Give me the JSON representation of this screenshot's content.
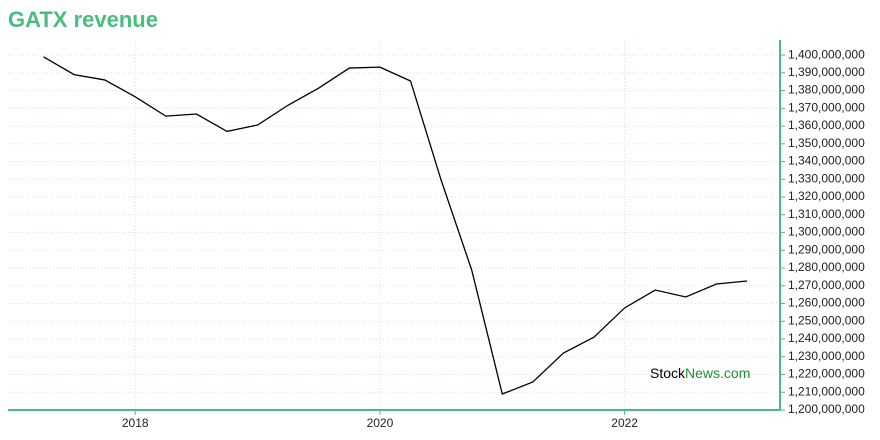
{
  "chart_data": {
    "type": "line",
    "title": "GATX revenue",
    "watermark": {
      "first": "Stock",
      "second": "News.com"
    },
    "x": [
      2017.25,
      2017.5,
      2017.75,
      2018,
      2018.25,
      2018.5,
      2018.75,
      2019,
      2019.25,
      2019.5,
      2019.75,
      2020,
      2020.25,
      2020.5,
      2020.75,
      2021,
      2021.25,
      2021.5,
      2021.75,
      2022,
      2022.25,
      2022.5,
      2022.75,
      2023
    ],
    "series": [
      {
        "name": "GATX revenue",
        "color": "#000000",
        "values": [
          1399000000,
          1389000000,
          1386000000,
          1376500000,
          1365600000,
          1366800000,
          1357000000,
          1360600000,
          1371800000,
          1381400000,
          1392700000,
          1393200000,
          1385400000,
          1329600000,
          1278900000,
          1209000000,
          1215800000,
          1232100000,
          1241100000,
          1257500000,
          1267600000,
          1263700000,
          1271000000,
          1272700000
        ]
      }
    ],
    "xlim": [
      2016.96,
      2023.27
    ],
    "xticks": [
      2018,
      2020,
      2022
    ],
    "ylim": [
      1200000000,
      1408500000
    ],
    "yticks": [
      {
        "value": 1200000000,
        "label": "1,200,000,000"
      },
      {
        "value": 1210000000,
        "label": "1,210,000,000"
      },
      {
        "value": 1220000000,
        "label": "1,220,000,000"
      },
      {
        "value": 1230000000,
        "label": "1,230,000,000"
      },
      {
        "value": 1240000000,
        "label": "1,240,000,000"
      },
      {
        "value": 1250000000,
        "label": "1,250,000,000"
      },
      {
        "value": 1260000000,
        "label": "1,260,000,000"
      },
      {
        "value": 1270000000,
        "label": "1,270,000,000"
      },
      {
        "value": 1280000000,
        "label": "1,280,000,000"
      },
      {
        "value": 1290000000,
        "label": "1,290,000,000"
      },
      {
        "value": 1300000000,
        "label": "1,300,000,000"
      },
      {
        "value": 1310000000,
        "label": "1,310,000,000"
      },
      {
        "value": 1320000000,
        "label": "1,320,000,000"
      },
      {
        "value": 1330000000,
        "label": "1,330,000,000"
      },
      {
        "value": 1340000000,
        "label": "1,340,000,000"
      },
      {
        "value": 1350000000,
        "label": "1,350,000,000"
      },
      {
        "value": 1360000000,
        "label": "1,360,000,000"
      },
      {
        "value": 1370000000,
        "label": "1,370,000,000"
      },
      {
        "value": 1380000000,
        "label": "1,380,000,000"
      },
      {
        "value": 1390000000,
        "label": "1,390,000,000"
      },
      {
        "value": 1400000000,
        "label": "1,400,000,000"
      }
    ],
    "grid": true
  }
}
